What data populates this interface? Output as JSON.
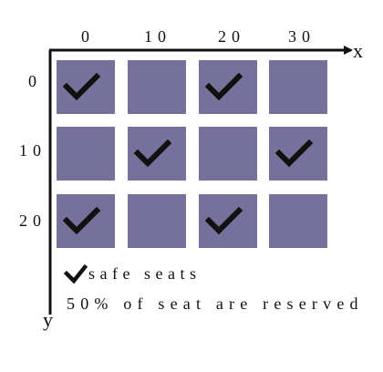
{
  "diagram": {
    "x_axis": {
      "name": "x",
      "ticks": [
        "0",
        "10",
        "20",
        "30"
      ]
    },
    "y_axis": {
      "name": "y",
      "ticks": [
        "0",
        "10",
        "20"
      ]
    },
    "seats": [
      [
        true,
        false,
        true,
        false
      ],
      [
        false,
        true,
        false,
        true
      ],
      [
        true,
        false,
        true,
        false
      ]
    ],
    "colors": {
      "seat": "#76719a",
      "check": "#111111",
      "axis": "#111111"
    },
    "legend": {
      "icon": "check-icon",
      "label": "safe seats"
    },
    "note": "50% of seat are reserved"
  }
}
